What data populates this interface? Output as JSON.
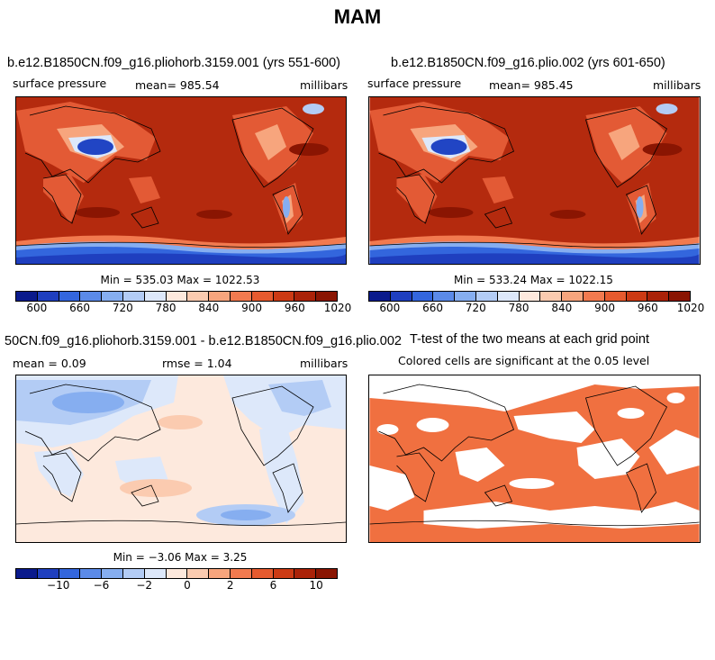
{
  "title": "MAM",
  "panels": [
    {
      "title": "b.e12.B1850CN.f09_g16.pliohorb.3159.001 (yrs 551-600)",
      "left_label": "surface pressure",
      "center_label": "mean=  985.54",
      "right_label": "millibars",
      "minmax": "Min = 535.03 Max = 1022.53"
    },
    {
      "title": "b.e12.B1850CN.f09_g16.plio.002 (yrs 601-650)",
      "left_label": "surface pressure",
      "center_label": "mean=  985.45",
      "right_label": "millibars",
      "minmax": "Min = 533.24 Max = 1022.15"
    },
    {
      "title": "50CN.f09_g16.pliohorb.3159.001 - b.e12.B1850CN.f09_g16.plio.002",
      "left_label": "mean =    0.09",
      "center_label": "rmse =    1.04",
      "right_label": "millibars",
      "minmax": "Min =  −3.06 Max =    3.25"
    },
    {
      "title": "T-test of the two means at each grid point",
      "subtitle": "Colored cells are significant at the 0.05 level"
    }
  ],
  "colorbars": {
    "pressure": {
      "labels": [
        "600",
        "660",
        "720",
        "780",
        "840",
        "900",
        "960",
        "1020"
      ],
      "colors": [
        "#0a1a8c",
        "#1f3fbf",
        "#3366dd",
        "#5b8ae8",
        "#86aef0",
        "#b3ccf5",
        "#dde8fa",
        "#fde9dd",
        "#fbcbb0",
        "#f7a57d",
        "#f27a4f",
        "#e65a2e",
        "#cc3a14",
        "#aa2208",
        "#8a1502"
      ]
    },
    "difference": {
      "labels": [
        "−10",
        "−6",
        "−2",
        "0",
        "2",
        "6",
        "10"
      ],
      "colors": [
        "#0a1a8c",
        "#1f3fbf",
        "#3366dd",
        "#5b8ae8",
        "#86aef0",
        "#b3ccf5",
        "#dde8fa",
        "#fde9dd",
        "#fbcbb0",
        "#f7a57d",
        "#f27a4f",
        "#e65a2e",
        "#cc3a14",
        "#aa2208",
        "#8a1502"
      ]
    }
  },
  "chart_data": [
    {
      "type": "heatmap",
      "title": "b.e12.B1850CN.f09_g16.pliohorb.3159.001 (yrs 551-600)",
      "variable": "surface pressure",
      "units": "millibars",
      "mean": 985.54,
      "min": 535.03,
      "max": 1022.53,
      "colorbar_ticks": [
        600,
        660,
        720,
        780,
        840,
        900,
        960,
        1020
      ]
    },
    {
      "type": "heatmap",
      "title": "b.e12.B1850CN.f09_g16.plio.002 (yrs 601-650)",
      "variable": "surface pressure",
      "units": "millibars",
      "mean": 985.45,
      "min": 533.24,
      "max": 1022.15,
      "colorbar_ticks": [
        600,
        660,
        720,
        780,
        840,
        900,
        960,
        1020
      ]
    },
    {
      "type": "heatmap",
      "title": "50CN.f09_g16.pliohorb.3159.001 - b.e12.B1850CN.f09_g16.plio.002",
      "units": "millibars",
      "mean": 0.09,
      "rmse": 1.04,
      "min": -3.06,
      "max": 3.25,
      "colorbar_ticks": [
        -10,
        -6,
        -2,
        0,
        2,
        6,
        10
      ]
    },
    {
      "type": "heatmap",
      "title": "T-test of the two means at each grid point",
      "note": "Colored cells are significant at the 0.05 level",
      "significance_level": 0.05
    }
  ]
}
